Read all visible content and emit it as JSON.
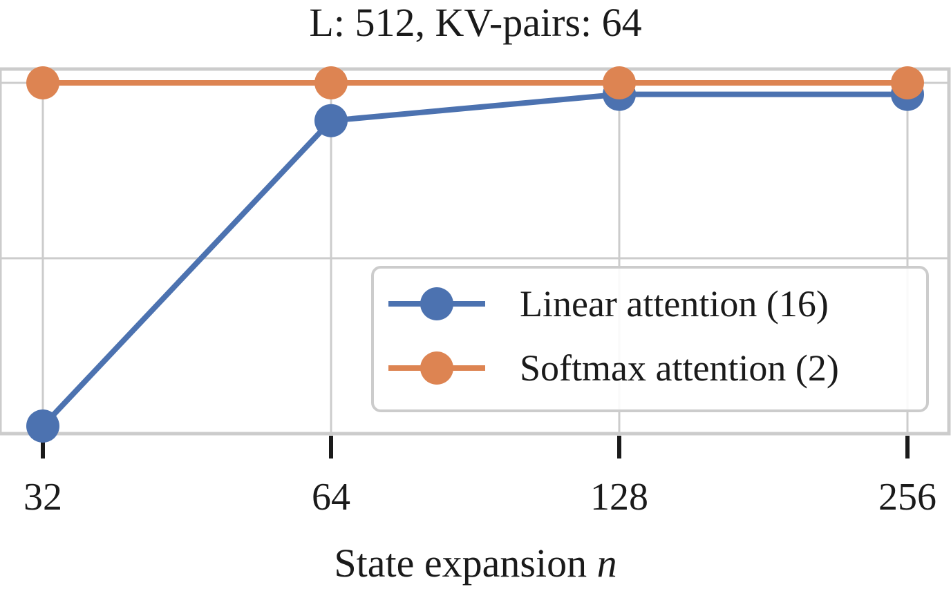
{
  "chart_data": {
    "type": "line",
    "title": "L: 512, KV-pairs: 64",
    "xlabel": "State expansion",
    "xlabel_var": "n",
    "ylabel": "",
    "x_scale": "log2",
    "categories": [
      "32",
      "64",
      "128",
      "256"
    ],
    "x": [
      32,
      64,
      128,
      256
    ],
    "ylim": [
      0.7,
      1.0
    ],
    "grid": true,
    "legend_position": "lower-right",
    "series": [
      {
        "name": "Linear attention (16)",
        "color": "#4c72b0",
        "values": [
          0.7,
          0.967,
          0.99,
          0.99
        ]
      },
      {
        "name": "Softmax attention (2)",
        "color": "#dd8452",
        "values": [
          1.0,
          1.0,
          1.0,
          1.0
        ]
      }
    ]
  }
}
